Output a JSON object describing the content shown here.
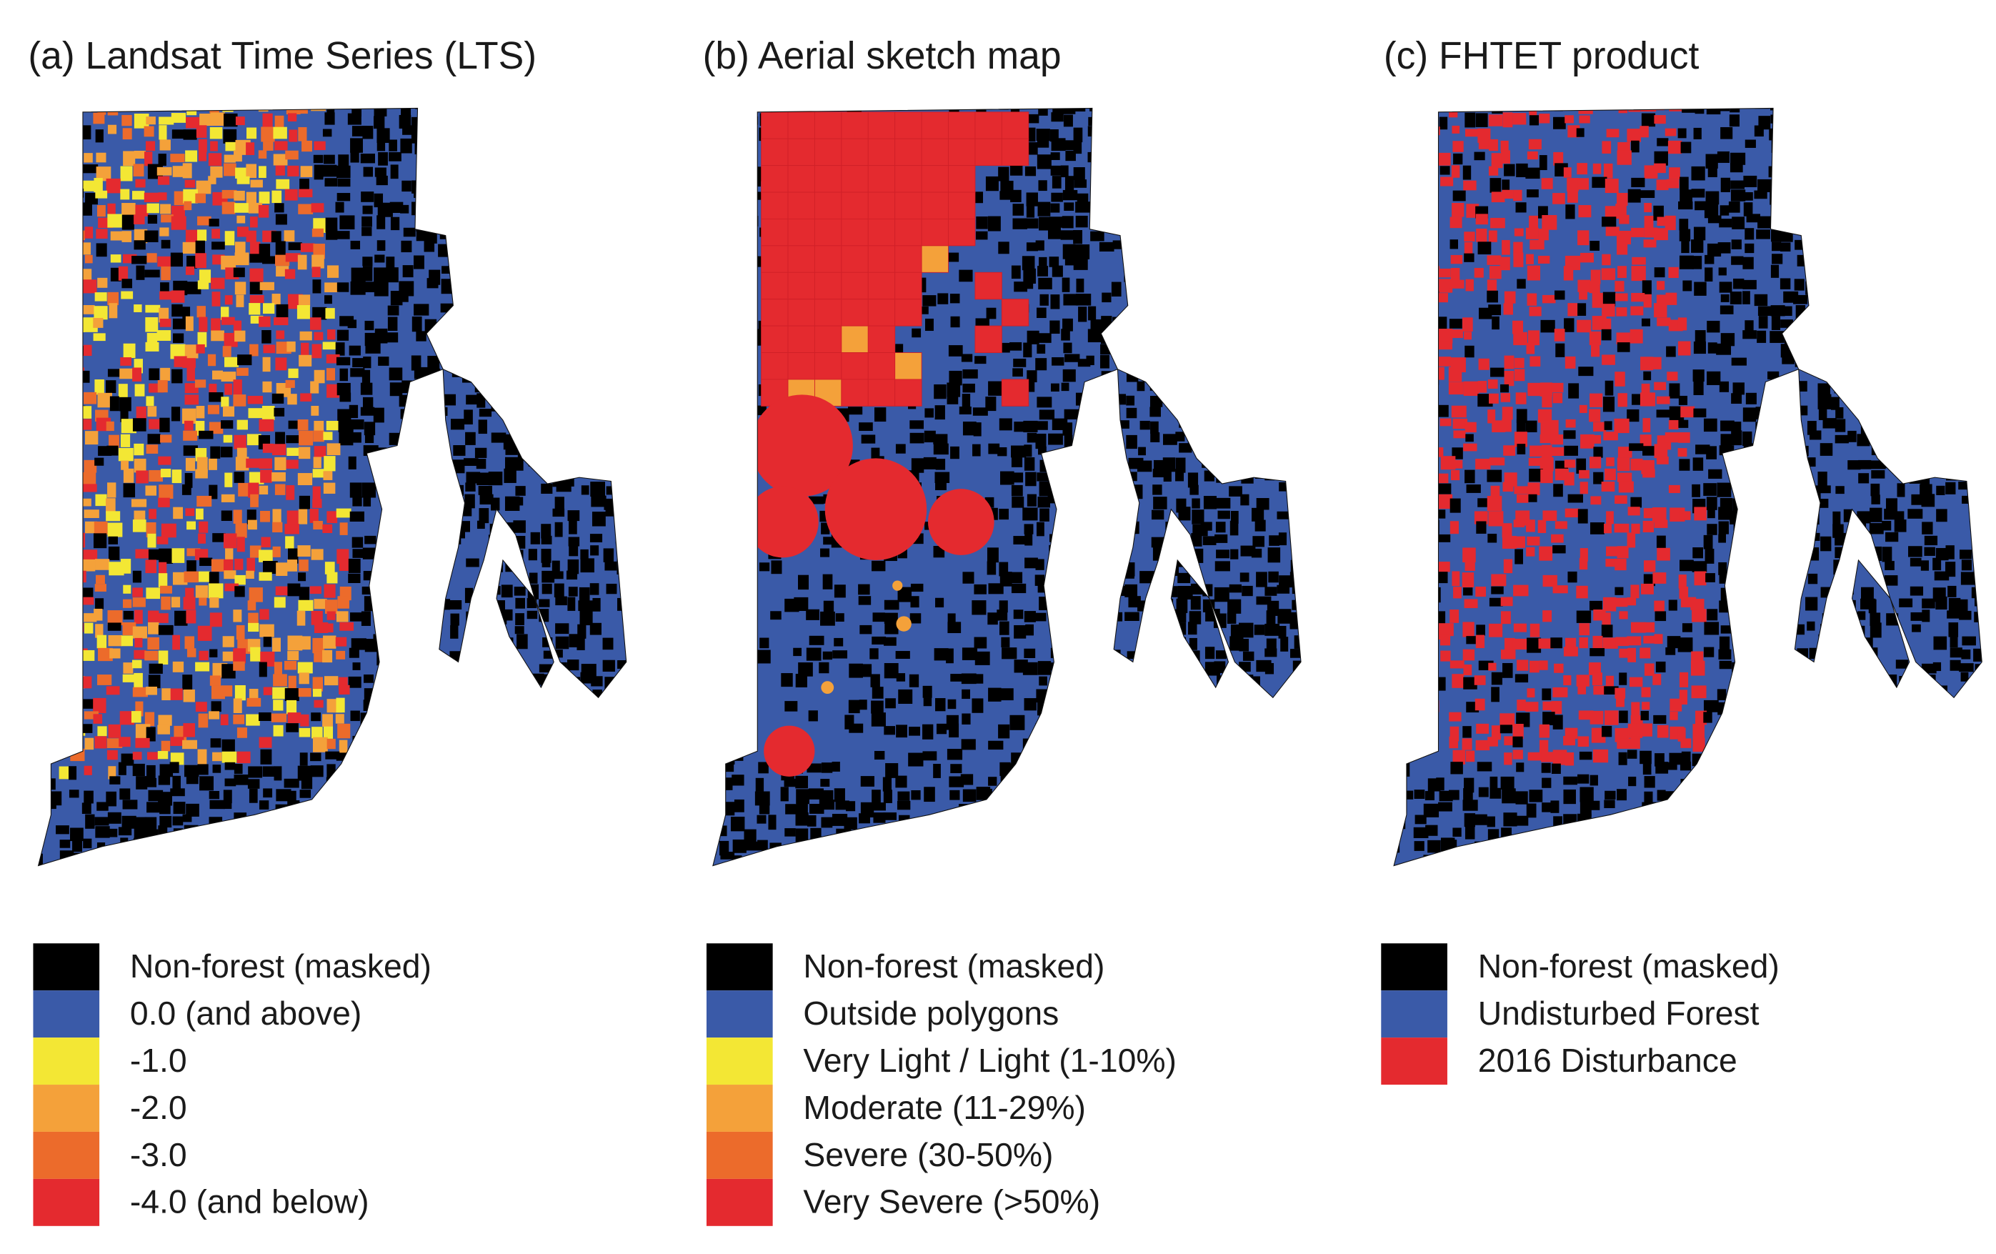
{
  "panels": [
    {
      "title": "(a) Landsat Time Series (LTS)",
      "legend": [
        {
          "label": "Non-forest (masked)",
          "color": "#000000"
        },
        {
          "label": "0.0 (and above)",
          "color": "#3a5aa8"
        },
        {
          "label": "-1.0",
          "color": "#f3e734"
        },
        {
          "label": "-2.0",
          "color": "#f4a13a"
        },
        {
          "label": "-3.0",
          "color": "#ec6b2b"
        },
        {
          "label": "-4.0 (and below)",
          "color": "#e42a2f"
        }
      ]
    },
    {
      "title": "(b) Aerial sketch map",
      "legend": [
        {
          "label": "Non-forest (masked)",
          "color": "#000000"
        },
        {
          "label": "Outside polygons",
          "color": "#3a5aa8"
        },
        {
          "label": "Very Light / Light (1-10%)",
          "color": "#f3e734"
        },
        {
          "label": "Moderate (11-29%)",
          "color": "#f4a13a"
        },
        {
          "label": "Severe (30-50%)",
          "color": "#ec6b2b"
        },
        {
          "label": "Very Severe (>50%)",
          "color": "#e42a2f"
        }
      ]
    },
    {
      "title": "(c) FHTET product",
      "legend": [
        {
          "label": "Non-forest (masked)",
          "color": "#000000"
        },
        {
          "label": "Undisturbed Forest",
          "color": "#3a5aa8"
        },
        {
          "label": "2016 Disturbance",
          "color": "#e42a2f"
        }
      ]
    }
  ]
}
